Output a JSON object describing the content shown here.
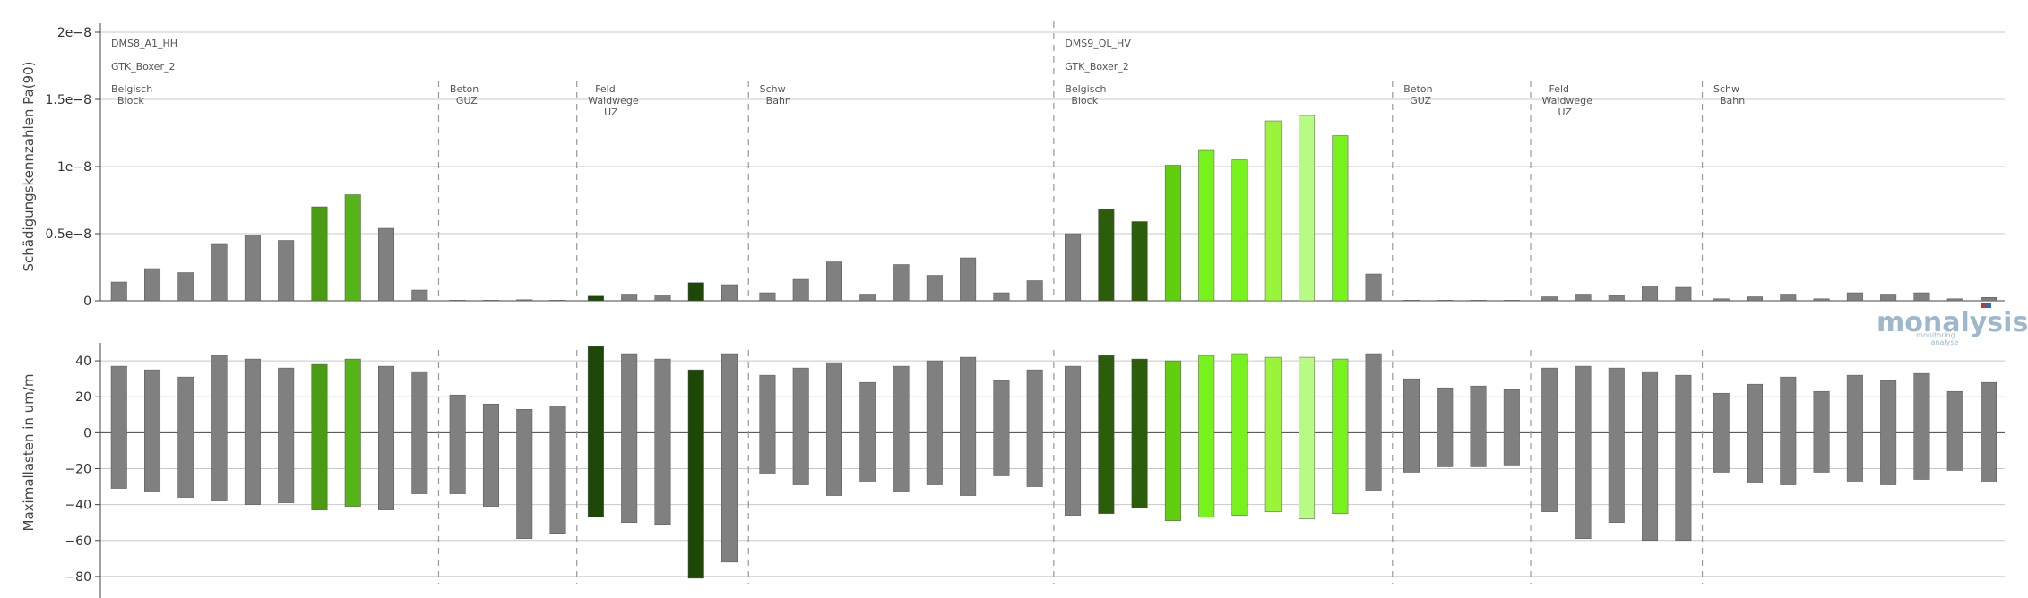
{
  "colors": {
    "gray": "#808080",
    "green1": "#4a9a14",
    "green2": "#55b518",
    "darkgreen": "#2b5d0a",
    "darkgreen2": "#1d4808",
    "lime": "#5fcf0e",
    "bright": "#78f21c",
    "light": "#9af43a",
    "pale": "#b7fb82",
    "logo": "#9db8cc"
  },
  "logo": {
    "text": "monalysis",
    "sub1": "monitoring",
    "sub2": "analyse"
  },
  "chart_data": [
    {
      "type": "bar",
      "title": "",
      "ylabel": "Schädigungskennzahlen Pa(90)",
      "yticks": [
        "0",
        "0.5e−8",
        "1e−8",
        "1.5e−8",
        "2e−8"
      ],
      "ylim": [
        0,
        2e-08
      ],
      "grid": true,
      "groups": [
        {
          "label": [
            "DMS8_A1_HH",
            "GTK_Boxer_2"
          ]
        },
        {
          "label": [
            "DMS9_QL_HV",
            "GTK_Boxer_2"
          ]
        }
      ],
      "segments": [
        {
          "label": [
            "Belgisch",
            "Block"
          ]
        },
        {
          "label": [
            "Beton",
            "GUZ"
          ]
        },
        {
          "label": [
            "Feld",
            "Waldwege",
            "UZ"
          ]
        },
        {
          "label": [
            "Schw",
            "Bahn"
          ]
        },
        {
          "label": [
            "Belgisch",
            "Block"
          ]
        },
        {
          "label": [
            "Beton",
            "GUZ"
          ]
        },
        {
          "label": [
            "Feld",
            "Waldwege",
            "UZ"
          ]
        },
        {
          "label": [
            "Schw",
            "Bahn"
          ]
        }
      ],
      "values": [
        1.4e-09,
        2.4e-09,
        2.1e-09,
        4.2e-09,
        4.9e-09,
        4.5e-09,
        7e-09,
        7.9e-09,
        5.4e-09,
        8e-10,
        5e-11,
        5e-11,
        8e-11,
        5e-11,
        3.5e-10,
        5e-10,
        4.5e-10,
        1.35e-09,
        1.2e-09,
        6e-10,
        1.6e-09,
        2.9e-09,
        5e-10,
        2.7e-09,
        1.9e-09,
        3.2e-09,
        6e-10,
        1.5e-09,
        5e-09,
        6.8e-09,
        5.9e-09,
        1.01e-08,
        1.12e-08,
        1.05e-08,
        1.34e-08,
        1.38e-08,
        1.23e-08,
        2e-09,
        5e-11,
        5e-11,
        5e-11,
        5e-11,
        3e-10,
        5e-10,
        4e-10,
        1.1e-09,
        1e-09,
        1.5e-10,
        3e-10,
        5e-10,
        1.5e-10,
        6e-10,
        5e-10,
        6e-10,
        1.5e-10,
        2.5e-10
      ]
    },
    {
      "type": "bar",
      "title": "",
      "ylabel": "Maximallasten in um/m",
      "yticks": [
        "−80",
        "−60",
        "−40",
        "−20",
        "0",
        "20",
        "40"
      ],
      "ylim": [
        -92,
        50
      ],
      "grid": true,
      "max": [
        37,
        35,
        31,
        43,
        41,
        36,
        38,
        41,
        37,
        34,
        21,
        16,
        13,
        15,
        48,
        44,
        41,
        35,
        44,
        32,
        36,
        39,
        28,
        37,
        40,
        42,
        29,
        35,
        37,
        43,
        41,
        40,
        43,
        44,
        42,
        42,
        41,
        44,
        30,
        25,
        26,
        24,
        36,
        37,
        36,
        34,
        32,
        22,
        27,
        31,
        23,
        32,
        29,
        33,
        23,
        28
      ],
      "min": [
        -31,
        -33,
        -36,
        -38,
        -40,
        -39,
        -43,
        -41,
        -43,
        -34,
        -34,
        -41,
        -59,
        -56,
        -47,
        -50,
        -51,
        -81,
        -72,
        -23,
        -29,
        -35,
        -27,
        -33,
        -29,
        -35,
        -24,
        -30,
        -46,
        -45,
        -42,
        -49,
        -47,
        -46,
        -44,
        -48,
        -45,
        -32,
        -22,
        -19,
        -19,
        -18,
        -44,
        -59,
        -50,
        -60,
        -60,
        -22,
        -28,
        -29,
        -22,
        -27,
        -29,
        -26,
        -21,
        -27
      ]
    }
  ],
  "bar_colors": [
    "gray",
    "gray",
    "gray",
    "gray",
    "gray",
    "gray",
    "green1",
    "green2",
    "gray",
    "gray",
    "gray",
    "gray",
    "gray",
    "gray",
    "darkgreen2",
    "gray",
    "gray",
    "darkgreen2",
    "gray",
    "gray",
    "gray",
    "gray",
    "gray",
    "gray",
    "gray",
    "gray",
    "gray",
    "gray",
    "gray",
    "darkgreen",
    "darkgreen",
    "lime",
    "bright",
    "bright",
    "light",
    "pale",
    "bright",
    "gray",
    "gray",
    "gray",
    "gray",
    "gray",
    "gray",
    "gray",
    "gray",
    "gray",
    "gray",
    "gray",
    "gray",
    "gray",
    "gray",
    "gray",
    "gray",
    "gray",
    "gray",
    "gray"
  ]
}
